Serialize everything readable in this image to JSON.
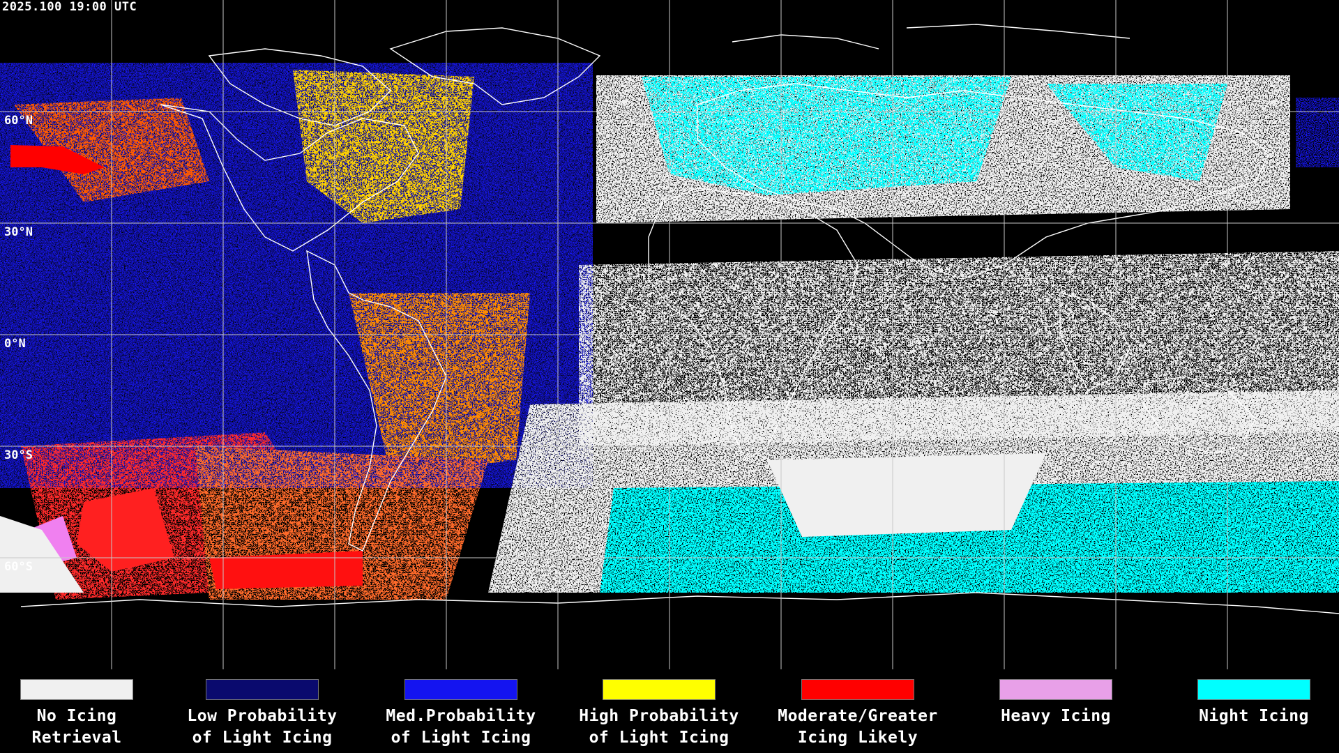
{
  "header": {
    "timestamp": "2025.100 19:00 UTC"
  },
  "map": {
    "latitude_labels": [
      "60°N",
      "30°N",
      "0°N",
      "30°S",
      "60°S"
    ]
  },
  "legend": {
    "items": [
      {
        "label": "No Icing\nRetrieval",
        "color": "#f0f0f0"
      },
      {
        "label": "Low Probability\nof Light Icing",
        "color": "#0a0a6e"
      },
      {
        "label": "Med.Probability\nof Light Icing",
        "color": "#1414f0"
      },
      {
        "label": "High Probability\nof Light Icing",
        "color": "#ffff00"
      },
      {
        "label": "Moderate/Greater\nIcing Likely",
        "color": "#ff0000"
      },
      {
        "label": "Heavy Icing",
        "color": "#e8a0e8"
      },
      {
        "label": "Night Icing",
        "color": "#00ffff"
      }
    ]
  }
}
